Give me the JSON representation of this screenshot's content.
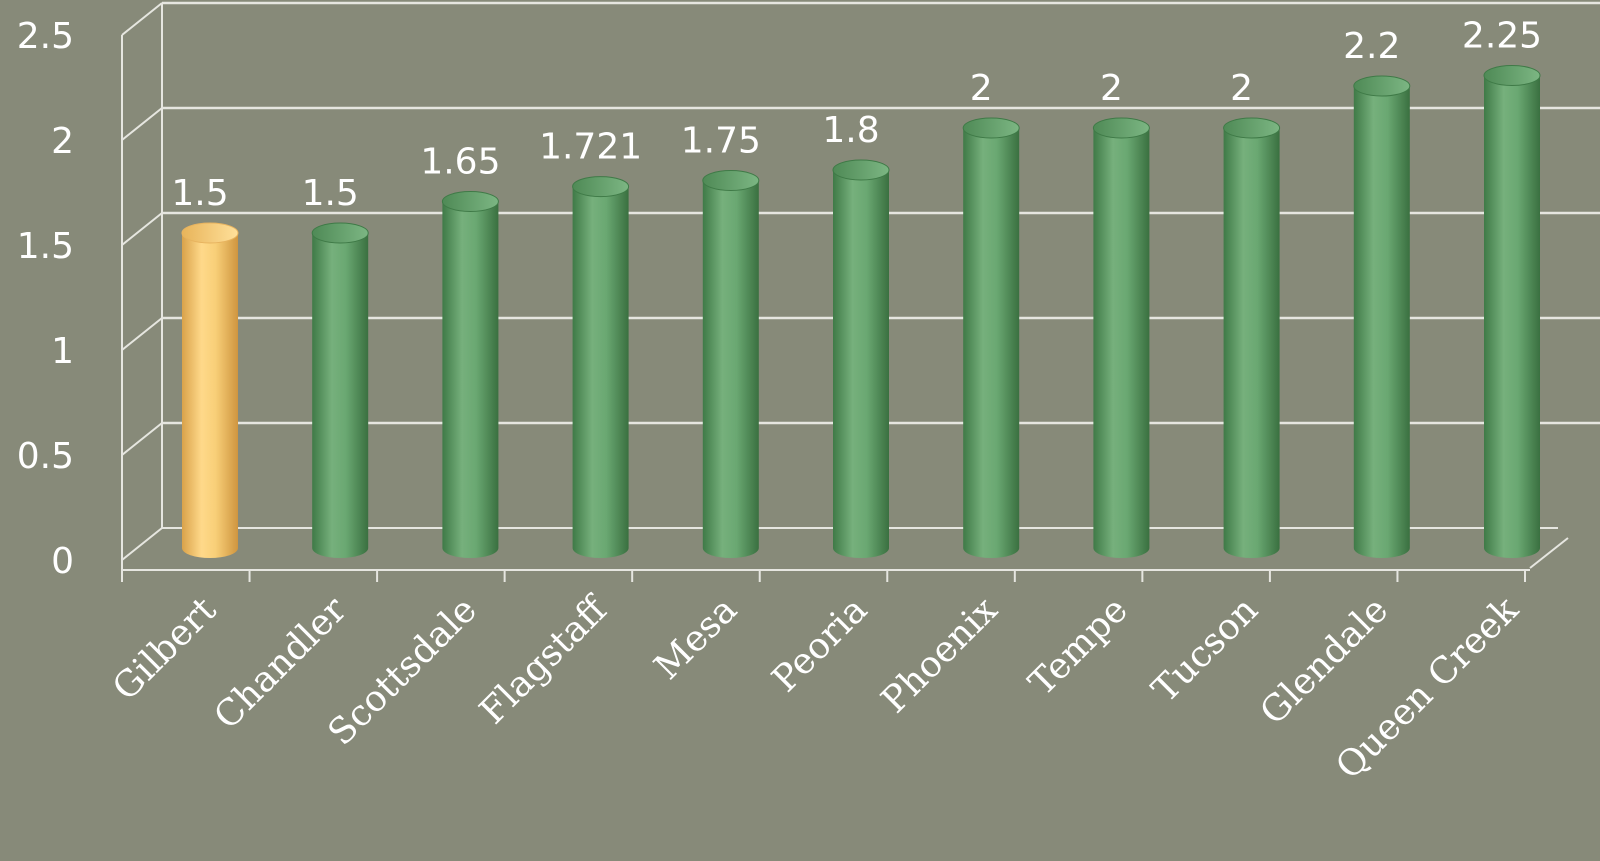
{
  "chart_data": {
    "type": "bar",
    "style": "3d-cylinder",
    "categories": [
      "Gilbert",
      "Chandler",
      "Scottsdale",
      "Flagstaff",
      "Mesa",
      "Peoria",
      "Phoenix",
      "Tempe",
      "Tucson",
      "Glendale",
      "Queen Creek"
    ],
    "values": [
      1.5,
      1.5,
      1.65,
      1.721,
      1.75,
      1.8,
      2,
      2,
      2,
      2.2,
      2.25
    ],
    "data_labels": [
      "1.5",
      "1.5",
      "1.65",
      "1.721",
      "1.75",
      "1.8",
      "2",
      "2",
      "2",
      "2.2",
      "2.25"
    ],
    "y_ticks": [
      "0",
      "0.5",
      "1",
      "1.5",
      "2",
      "2.5"
    ],
    "ylim": [
      0,
      2.5
    ],
    "grid": true,
    "highlight_index": 0,
    "colors": {
      "background": "#878a79",
      "bar": "#5f9e67",
      "highlight_bar": "#f6c35f",
      "grid": "#e6e6e0",
      "text": "#ffffff"
    }
  }
}
